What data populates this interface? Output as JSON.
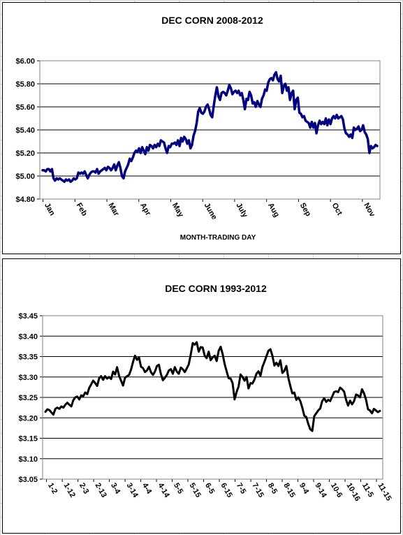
{
  "chart_data": [
    {
      "type": "line",
      "title": "DEC CORN 2008-2012",
      "xlabel": "MONTH-TRADING DAY",
      "ylabel": "",
      "ylim": [
        4.8,
        6.0
      ],
      "y_ticks": [
        "$6.00",
        "$5.80",
        "$5.60",
        "$5.40",
        "$5.20",
        "$5.00",
        "$4.80"
      ],
      "y_tick_values": [
        6.0,
        5.8,
        5.6,
        5.4,
        5.2,
        5.0,
        4.8
      ],
      "x_tick_labels": [
        "Jan",
        "Feb",
        "Mar",
        "Apr",
        "May",
        "June",
        "July",
        "Aug",
        "Sep",
        "Oct",
        "Nov"
      ],
      "grid": "horizontal",
      "line_color": "#000080",
      "series": [
        {
          "values": [
            5.05,
            5.05,
            5.04,
            5.06,
            5.06,
            5.04,
            5.06,
            4.98,
            4.96,
            4.98,
            4.97,
            4.98,
            4.97,
            4.96,
            4.95,
            4.97,
            4.96,
            4.97,
            4.95,
            4.96,
            4.98,
            4.97,
            4.98,
            5.03,
            5.02,
            5.03,
            5.02,
            5.04,
            5.01,
            4.98,
            5.01,
            5.03,
            5.04,
            5.04,
            5.03,
            5.06,
            5.02,
            5.04,
            5.05,
            5.06,
            5.07,
            5.05,
            5.08,
            5.07,
            5.05,
            5.07,
            5.1,
            5.05,
            5.09,
            5.12,
            5.07,
            5.0,
            4.98,
            5.04,
            5.07,
            5.1,
            5.15,
            5.13,
            5.16,
            5.2,
            5.22,
            5.21,
            5.24,
            5.2,
            5.25,
            5.22,
            5.19,
            5.25,
            5.22,
            5.27,
            5.26,
            5.24,
            5.27,
            5.25,
            5.28,
            5.26,
            5.31,
            5.3,
            5.29,
            5.24,
            5.2,
            5.26,
            5.25,
            5.28,
            5.28,
            5.29,
            5.27,
            5.31,
            5.26,
            5.33,
            5.3,
            5.34,
            5.32,
            5.28,
            5.31,
            5.24,
            5.27,
            5.35,
            5.39,
            5.46,
            5.56,
            5.59,
            5.55,
            5.54,
            5.56,
            5.6,
            5.62,
            5.58,
            5.53,
            5.51,
            5.61,
            5.7,
            5.77,
            5.69,
            5.66,
            5.72,
            5.73,
            5.72,
            5.7,
            5.74,
            5.79,
            5.76,
            5.71,
            5.73,
            5.74,
            5.72,
            5.74,
            5.7,
            5.72,
            5.66,
            5.58,
            5.67,
            5.66,
            5.73,
            5.7,
            5.63,
            5.64,
            5.6,
            5.65,
            5.62,
            5.6,
            5.67,
            5.7,
            5.75,
            5.74,
            5.81,
            5.84,
            5.85,
            5.83,
            5.88,
            5.9,
            5.84,
            5.82,
            5.87,
            5.72,
            5.78,
            5.8,
            5.74,
            5.77,
            5.66,
            5.72,
            5.74,
            5.58,
            5.66,
            5.68,
            5.55,
            5.54,
            5.51,
            5.52,
            5.48,
            5.47,
            5.46,
            5.42,
            5.47,
            5.42,
            5.46,
            5.37,
            5.44,
            5.48,
            5.45,
            5.47,
            5.45,
            5.5,
            5.44,
            5.49,
            5.45,
            5.5,
            5.52,
            5.5,
            5.53,
            5.5,
            5.51,
            5.52,
            5.49,
            5.41,
            5.37,
            5.36,
            5.34,
            5.36,
            5.33,
            5.42,
            5.4,
            5.41,
            5.43,
            5.39,
            5.4,
            5.44,
            5.38,
            5.36,
            5.32,
            5.2,
            5.26,
            5.24,
            5.25,
            5.27,
            5.26
          ]
        }
      ]
    },
    {
      "type": "line",
      "title": "DEC CORN 1993-2012",
      "xlabel": "",
      "ylabel": "",
      "ylim": [
        3.05,
        3.45
      ],
      "y_ticks": [
        "$3.45",
        "$3.40",
        "$3.35",
        "$3.30",
        "$3.25",
        "$3.20",
        "$3.15",
        "$3.10",
        "$3.05"
      ],
      "y_tick_values": [
        3.45,
        3.4,
        3.35,
        3.3,
        3.25,
        3.2,
        3.15,
        3.1,
        3.05
      ],
      "x_tick_labels": [
        "1-2",
        "1-12",
        "2-3",
        "2-13",
        "3-4",
        "3-14",
        "4-4",
        "4-14",
        "5-5",
        "5-15",
        "6-5",
        "6-15",
        "7-5",
        "7-15",
        "8-5",
        "8-15",
        "9-4",
        "9-14",
        "10-6",
        "10-16",
        "11-5",
        "11-15"
      ],
      "grid": "horizontal",
      "line_color": "#000000",
      "series": [
        {
          "values": [
            3.215,
            3.221,
            3.219,
            3.213,
            3.208,
            3.222,
            3.225,
            3.222,
            3.228,
            3.225,
            3.232,
            3.237,
            3.232,
            3.228,
            3.243,
            3.25,
            3.252,
            3.245,
            3.255,
            3.253,
            3.262,
            3.258,
            3.273,
            3.282,
            3.291,
            3.285,
            3.278,
            3.297,
            3.302,
            3.293,
            3.302,
            3.296,
            3.3,
            3.295,
            3.313,
            3.306,
            3.324,
            3.303,
            3.291,
            3.279,
            3.298,
            3.302,
            3.305,
            3.318,
            3.337,
            3.352,
            3.342,
            3.348,
            3.325,
            3.322,
            3.312,
            3.316,
            3.325,
            3.312,
            3.305,
            3.313,
            3.327,
            3.33,
            3.307,
            3.292,
            3.298,
            3.305,
            3.316,
            3.319,
            3.308,
            3.324,
            3.313,
            3.308,
            3.323,
            3.319,
            3.312,
            3.321,
            3.331,
            3.355,
            3.383,
            3.379,
            3.385,
            3.362,
            3.373,
            3.372,
            3.352,
            3.346,
            3.362,
            3.341,
            3.348,
            3.352,
            3.339,
            3.364,
            3.374,
            3.356,
            3.332,
            3.314,
            3.297,
            3.296,
            3.285,
            3.245,
            3.263,
            3.277,
            3.306,
            3.3,
            3.291,
            3.3,
            3.272,
            3.285,
            3.284,
            3.294,
            3.308,
            3.314,
            3.303,
            3.325,
            3.337,
            3.351,
            3.364,
            3.368,
            3.352,
            3.328,
            3.335,
            3.327,
            3.341,
            3.31,
            3.315,
            3.327,
            3.298,
            3.278,
            3.26,
            3.262,
            3.244,
            3.25,
            3.241,
            3.225,
            3.205,
            3.202,
            3.185,
            3.172,
            3.168,
            3.204,
            3.211,
            3.218,
            3.223,
            3.241,
            3.248,
            3.239,
            3.244,
            3.241,
            3.252,
            3.263,
            3.265,
            3.263,
            3.274,
            3.27,
            3.264,
            3.244,
            3.23,
            3.242,
            3.233,
            3.241,
            3.257,
            3.255,
            3.25,
            3.27,
            3.26,
            3.245,
            3.221,
            3.218,
            3.211,
            3.222,
            3.218,
            3.214,
            3.217
          ]
        }
      ]
    }
  ]
}
